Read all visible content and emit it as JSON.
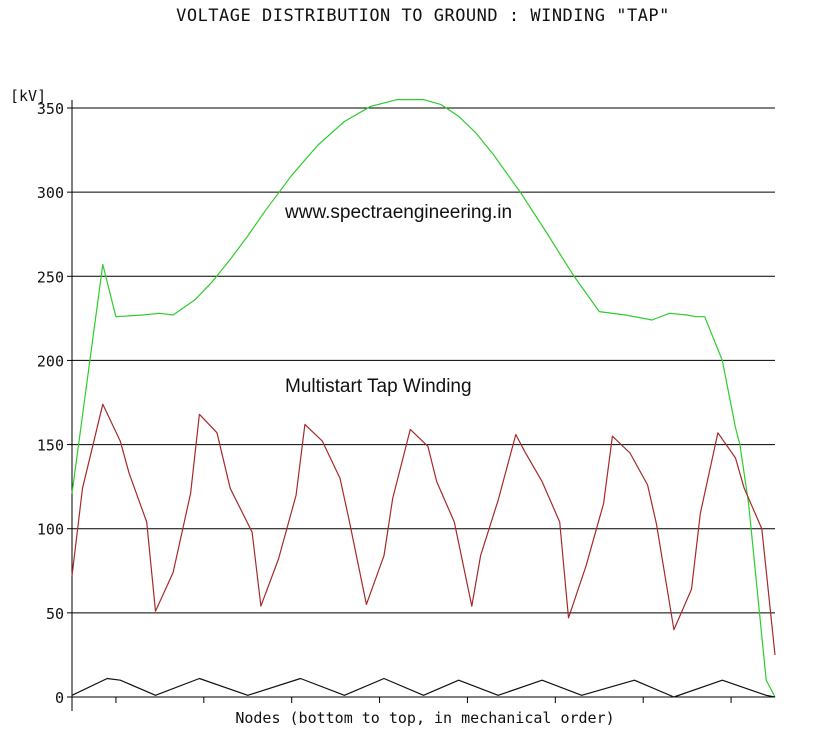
{
  "chart_data": {
    "type": "line",
    "title": "VOLTAGE DISTRIBUTION TO GROUND :  WINDING \"TAP\"",
    "ylabel": "[kV]",
    "xlabel": "Nodes (bottom to top, in mechanical order)",
    "ylim": [
      0,
      350
    ],
    "xlim": [
      0,
      80
    ],
    "yticks": [
      "0",
      "50",
      "100",
      "150",
      "200",
      "250",
      "300",
      "350"
    ],
    "grid": "horizontal",
    "annotations": [
      "www.spectraengineering.in",
      "Multistart Tap Winding"
    ],
    "series": [
      {
        "color": "#2ecc2e",
        "x": [
          0,
          3.5,
          5,
          8,
          10,
          11.5,
          14,
          16,
          18,
          20,
          22,
          25,
          28,
          31,
          34,
          37,
          40,
          42,
          44,
          46,
          48,
          51,
          54,
          57,
          60,
          63,
          66,
          68,
          70,
          71,
          72,
          74,
          75.5,
          76,
          77,
          79,
          80
        ],
        "y": [
          121,
          257,
          226,
          227,
          228,
          227,
          236,
          247,
          260,
          274,
          289,
          310,
          328,
          342,
          351,
          355,
          355,
          352,
          345,
          335,
          322,
          300,
          276,
          251,
          229,
          227,
          224,
          228,
          227,
          226,
          226,
          200,
          160,
          150,
          115,
          10,
          0
        ]
      },
      {
        "color": "#a52a2a",
        "x": [
          0,
          1.2,
          3.5,
          5.5,
          6.5,
          8.5,
          9.5,
          11.5,
          13.5,
          14.5,
          16.5,
          18,
          20.5,
          21.5,
          23.5,
          25.5,
          26.5,
          28.5,
          30.5,
          31.5,
          33.5,
          35.5,
          36.5,
          38.5,
          40.5,
          41.5,
          43.5,
          45.5,
          46.5,
          48.5,
          50.5,
          51.5,
          53.5,
          55.5,
          56.5,
          58.5,
          60.5,
          61.5,
          63.5,
          65.5,
          66.5,
          68.5,
          70.5,
          71.5,
          73.5,
          75.5,
          76.5,
          78.5,
          80
        ],
        "y": [
          72,
          124,
          174,
          152,
          133,
          104,
          51,
          74,
          121,
          168,
          157,
          124,
          98,
          54,
          82,
          120,
          162,
          152,
          130,
          106,
          55,
          84,
          118,
          159,
          149,
          128,
          104,
          54,
          84,
          117,
          156,
          146,
          128,
          104,
          47,
          78,
          115,
          155,
          145,
          126,
          103,
          40,
          64,
          109,
          157,
          142,
          124,
          100,
          25
        ]
      },
      {
        "color": "#111111",
        "x": [
          0,
          4,
          5.5,
          9.5,
          14.5,
          20,
          26,
          31,
          35.5,
          40,
          44,
          48.5,
          53.5,
          58,
          64,
          68.5,
          74,
          79,
          80
        ],
        "y": [
          1,
          11,
          10,
          1,
          11,
          1,
          11,
          1,
          11,
          1,
          10,
          1,
          10,
          1,
          10,
          0,
          10,
          1,
          0
        ]
      }
    ]
  }
}
